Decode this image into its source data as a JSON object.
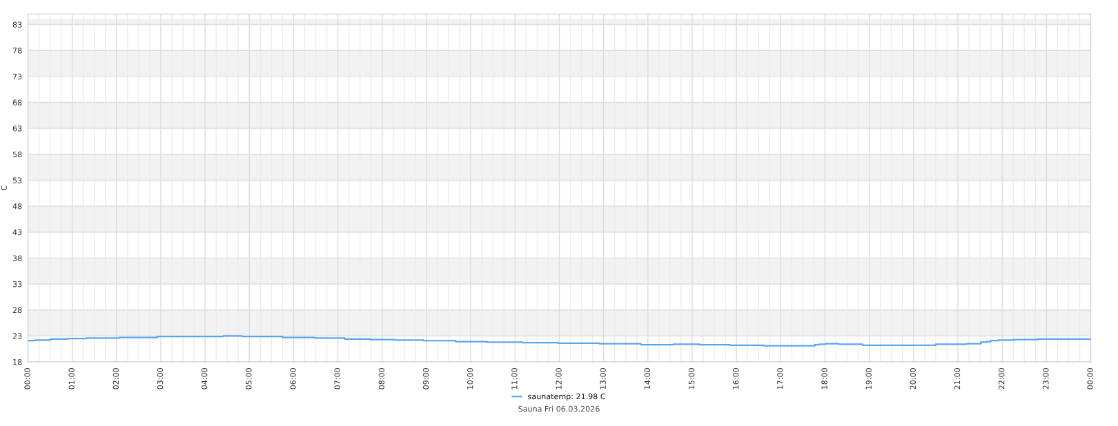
{
  "chart_data": {
    "type": "step",
    "title": "Sauna Fri 06.03.2026",
    "ylabel": "C",
    "x": [
      0,
      0.15,
      0.51,
      0.89,
      1.31,
      2.07,
      2.92,
      4.41,
      4.84,
      5.75,
      6.47,
      7.15,
      7.73,
      8.29,
      8.93,
      9.66,
      10.37,
      11.17,
      11.98,
      12.91,
      13.84,
      14.58,
      15.17,
      15.85,
      16.61,
      17.77,
      17.87,
      18.01,
      18.31,
      18.85,
      20.5,
      21.2,
      21.52,
      21.65,
      21.74,
      21.91,
      22.26,
      22.8,
      24.0
    ],
    "series": [
      {
        "name": "saunatemp: 21.98 C",
        "color": "#5aa5f2",
        "values": [
          22.1,
          22.2,
          22.4,
          22.5,
          22.6,
          22.7,
          22.9,
          23.0,
          22.9,
          22.7,
          22.6,
          22.4,
          22.3,
          22.2,
          22.1,
          21.9,
          21.8,
          21.7,
          21.6,
          21.5,
          21.3,
          21.4,
          21.3,
          21.2,
          21.1,
          21.3,
          21.4,
          21.5,
          21.4,
          21.2,
          21.4,
          21.5,
          21.8,
          21.9,
          22.1,
          22.2,
          22.3,
          22.4,
          22.4
        ]
      }
    ],
    "xlim": [
      0,
      24
    ],
    "xticks": [
      {
        "value": 0,
        "label": "00:00"
      },
      {
        "value": 0.25,
        "label": null
      },
      {
        "value": 0.5,
        "label": null
      },
      {
        "value": 0.75,
        "label": null
      },
      {
        "value": 1,
        "label": "01:00"
      },
      {
        "value": 1.25,
        "label": null
      },
      {
        "value": 1.5,
        "label": null
      },
      {
        "value": 1.75,
        "label": null
      },
      {
        "value": 2,
        "label": "02:00"
      },
      {
        "value": 2.25,
        "label": null
      },
      {
        "value": 2.5,
        "label": null
      },
      {
        "value": 2.75,
        "label": null
      },
      {
        "value": 3,
        "label": "03:00"
      },
      {
        "value": 3.25,
        "label": null
      },
      {
        "value": 3.5,
        "label": null
      },
      {
        "value": 3.75,
        "label": null
      },
      {
        "value": 4,
        "label": "04:00"
      },
      {
        "value": 4.25,
        "label": null
      },
      {
        "value": 4.5,
        "label": null
      },
      {
        "value": 4.75,
        "label": null
      },
      {
        "value": 5,
        "label": "05:00"
      },
      {
        "value": 5.25,
        "label": null
      },
      {
        "value": 5.5,
        "label": null
      },
      {
        "value": 5.75,
        "label": null
      },
      {
        "value": 6,
        "label": "06:00"
      },
      {
        "value": 6.25,
        "label": null
      },
      {
        "value": 6.5,
        "label": null
      },
      {
        "value": 6.75,
        "label": null
      },
      {
        "value": 7,
        "label": "07:00"
      },
      {
        "value": 7.25,
        "label": null
      },
      {
        "value": 7.5,
        "label": null
      },
      {
        "value": 7.75,
        "label": null
      },
      {
        "value": 8,
        "label": "08:00"
      },
      {
        "value": 8.25,
        "label": null
      },
      {
        "value": 8.5,
        "label": null
      },
      {
        "value": 8.75,
        "label": null
      },
      {
        "value": 9,
        "label": "09:00"
      },
      {
        "value": 9.25,
        "label": null
      },
      {
        "value": 9.5,
        "label": null
      },
      {
        "value": 9.75,
        "label": null
      },
      {
        "value": 10,
        "label": "10:00"
      },
      {
        "value": 10.25,
        "label": null
      },
      {
        "value": 10.5,
        "label": null
      },
      {
        "value": 10.75,
        "label": null
      },
      {
        "value": 11,
        "label": "11:00"
      },
      {
        "value": 11.25,
        "label": null
      },
      {
        "value": 11.5,
        "label": null
      },
      {
        "value": 11.75,
        "label": null
      },
      {
        "value": 12,
        "label": "12:00"
      },
      {
        "value": 12.25,
        "label": null
      },
      {
        "value": 12.5,
        "label": null
      },
      {
        "value": 12.75,
        "label": null
      },
      {
        "value": 13,
        "label": "13:00"
      },
      {
        "value": 13.25,
        "label": null
      },
      {
        "value": 13.5,
        "label": null
      },
      {
        "value": 13.75,
        "label": null
      },
      {
        "value": 14,
        "label": "14:00"
      },
      {
        "value": 14.25,
        "label": null
      },
      {
        "value": 14.5,
        "label": null
      },
      {
        "value": 14.75,
        "label": null
      },
      {
        "value": 15,
        "label": "15:00"
      },
      {
        "value": 15.25,
        "label": null
      },
      {
        "value": 15.5,
        "label": null
      },
      {
        "value": 15.75,
        "label": null
      },
      {
        "value": 16,
        "label": "16:00"
      },
      {
        "value": 16.25,
        "label": null
      },
      {
        "value": 16.5,
        "label": null
      },
      {
        "value": 16.75,
        "label": null
      },
      {
        "value": 17,
        "label": "17:00"
      },
      {
        "value": 17.25,
        "label": null
      },
      {
        "value": 17.5,
        "label": null
      },
      {
        "value": 17.75,
        "label": null
      },
      {
        "value": 18,
        "label": "18:00"
      },
      {
        "value": 18.25,
        "label": null
      },
      {
        "value": 18.5,
        "label": null
      },
      {
        "value": 18.75,
        "label": null
      },
      {
        "value": 19,
        "label": "19:00"
      },
      {
        "value": 19.25,
        "label": null
      },
      {
        "value": 19.5,
        "label": null
      },
      {
        "value": 19.75,
        "label": null
      },
      {
        "value": 20,
        "label": "20:00"
      },
      {
        "value": 20.25,
        "label": null
      },
      {
        "value": 20.5,
        "label": null
      },
      {
        "value": 20.75,
        "label": null
      },
      {
        "value": 21,
        "label": "21:00"
      },
      {
        "value": 21.25,
        "label": null
      },
      {
        "value": 21.5,
        "label": null
      },
      {
        "value": 21.75,
        "label": null
      },
      {
        "value": 22,
        "label": "22:00"
      },
      {
        "value": 22.25,
        "label": null
      },
      {
        "value": 22.5,
        "label": null
      },
      {
        "value": 22.75,
        "label": null
      },
      {
        "value": 23,
        "label": "23:00"
      },
      {
        "value": 23.25,
        "label": null
      },
      {
        "value": 23.5,
        "label": null
      },
      {
        "value": 23.75,
        "label": null
      },
      {
        "value": 24,
        "label": "00:00"
      }
    ],
    "ylim": [
      18,
      85
    ],
    "yticks": [
      18,
      23,
      28,
      33,
      38,
      43,
      48,
      53,
      58,
      63,
      68,
      73,
      78,
      83
    ],
    "grid": true,
    "bands": [
      {
        "axis": "y",
        "from": 23,
        "to": 28,
        "color": "#f2f2f2"
      },
      {
        "axis": "y",
        "from": 33,
        "to": 38,
        "color": "#f2f2f2"
      },
      {
        "axis": "y",
        "from": 43,
        "to": 48,
        "color": "#f2f2f2"
      },
      {
        "axis": "y",
        "from": 53,
        "to": 58,
        "color": "#f2f2f2"
      },
      {
        "axis": "y",
        "from": 63,
        "to": 68,
        "color": "#f2f2f2"
      },
      {
        "axis": "y",
        "from": 73,
        "to": 78,
        "color": "#f2f2f2"
      },
      {
        "axis": "y",
        "from": 83,
        "to": 84,
        "color": "#f2f2f2"
      }
    ],
    "legend": "bottom"
  }
}
